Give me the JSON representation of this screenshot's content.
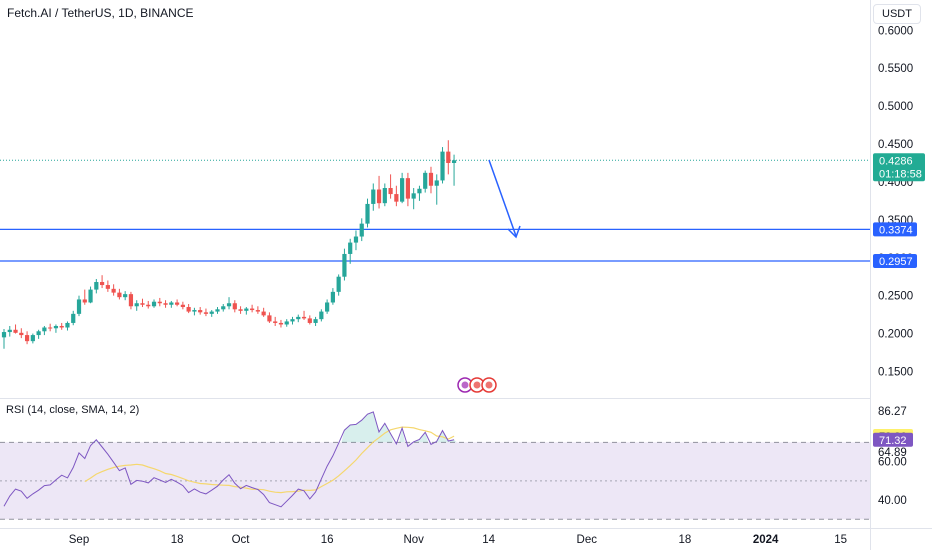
{
  "header": {
    "symbol_title": "Fetch.AI / TetherUS, 1D, BINANCE",
    "currency": "USDT"
  },
  "colors": {
    "up": "#26a69a",
    "down": "#ef5350",
    "level_line": "#2962ff",
    "rsi_line": "#7e57c2",
    "rsi_ma": "#f5d76e",
    "rsi_band": "#ede7f6",
    "arrow": "#2962ff",
    "price_tag_bg": "#22ab94",
    "level_tag_bg": "#2962ff",
    "ma_tag_bg": "#fdf06b",
    "rsi_tag_bg": "#7e57c2"
  },
  "chart_data": [
    {
      "type": "candlestick",
      "title": "Fetch.AI / TetherUS, 1D, BINANCE",
      "y_ticks": [
        "0.6000",
        "0.5500",
        "0.5000",
        "0.4500",
        "0.4000",
        "0.3500",
        "0.3000",
        "0.2500",
        "0.2000",
        "0.1500"
      ],
      "x_ticks": [
        "Sep",
        "18",
        "Oct",
        "16",
        "Nov",
        "14",
        "Dec",
        "18",
        "2024",
        "15"
      ],
      "ylim": [
        0.115,
        0.64
      ],
      "last_price": "0.4286",
      "countdown": "01:18:58",
      "horizontal_levels": [
        "0.3374",
        "0.2957"
      ],
      "annotations": [
        "blue arrow pointing down toward the 0.3374 level"
      ],
      "ohlc": [
        [
          0.195,
          0.206,
          0.18,
          0.202
        ],
        [
          0.202,
          0.21,
          0.196,
          0.205
        ],
        [
          0.205,
          0.212,
          0.2,
          0.201
        ],
        [
          0.201,
          0.207,
          0.194,
          0.198
        ],
        [
          0.198,
          0.203,
          0.186,
          0.19
        ],
        [
          0.19,
          0.2,
          0.187,
          0.198
        ],
        [
          0.198,
          0.205,
          0.193,
          0.203
        ],
        [
          0.203,
          0.21,
          0.198,
          0.208
        ],
        [
          0.208,
          0.213,
          0.203,
          0.207
        ],
        [
          0.207,
          0.212,
          0.201,
          0.21
        ],
        [
          0.21,
          0.214,
          0.205,
          0.208
        ],
        [
          0.208,
          0.216,
          0.204,
          0.214
        ],
        [
          0.214,
          0.23,
          0.211,
          0.226
        ],
        [
          0.226,
          0.25,
          0.223,
          0.245
        ],
        [
          0.245,
          0.258,
          0.238,
          0.241
        ],
        [
          0.241,
          0.262,
          0.24,
          0.258
        ],
        [
          0.258,
          0.272,
          0.253,
          0.268
        ],
        [
          0.268,
          0.277,
          0.26,
          0.264
        ],
        [
          0.264,
          0.27,
          0.255,
          0.259
        ],
        [
          0.259,
          0.265,
          0.25,
          0.254
        ],
        [
          0.254,
          0.259,
          0.245,
          0.248
        ],
        [
          0.248,
          0.256,
          0.244,
          0.252
        ],
        [
          0.252,
          0.255,
          0.232,
          0.236
        ],
        [
          0.236,
          0.244,
          0.23,
          0.24
        ],
        [
          0.24,
          0.246,
          0.235,
          0.238
        ],
        [
          0.238,
          0.243,
          0.233,
          0.236
        ],
        [
          0.236,
          0.245,
          0.234,
          0.242
        ],
        [
          0.242,
          0.247,
          0.236,
          0.24
        ],
        [
          0.24,
          0.244,
          0.234,
          0.238
        ],
        [
          0.238,
          0.243,
          0.234,
          0.241
        ],
        [
          0.241,
          0.245,
          0.236,
          0.238
        ],
        [
          0.238,
          0.242,
          0.232,
          0.235
        ],
        [
          0.235,
          0.239,
          0.227,
          0.229
        ],
        [
          0.229,
          0.234,
          0.224,
          0.231
        ],
        [
          0.231,
          0.235,
          0.225,
          0.228
        ],
        [
          0.228,
          0.233,
          0.223,
          0.226
        ],
        [
          0.226,
          0.231,
          0.222,
          0.229
        ],
        [
          0.229,
          0.235,
          0.226,
          0.232
        ],
        [
          0.232,
          0.239,
          0.229,
          0.236
        ],
        [
          0.236,
          0.248,
          0.232,
          0.24
        ],
        [
          0.24,
          0.244,
          0.228,
          0.232
        ],
        [
          0.232,
          0.236,
          0.226,
          0.23
        ],
        [
          0.23,
          0.235,
          0.225,
          0.233
        ],
        [
          0.233,
          0.238,
          0.228,
          0.231
        ],
        [
          0.231,
          0.236,
          0.226,
          0.229
        ],
        [
          0.229,
          0.234,
          0.222,
          0.224
        ],
        [
          0.224,
          0.228,
          0.214,
          0.216
        ],
        [
          0.216,
          0.222,
          0.21,
          0.214
        ],
        [
          0.214,
          0.218,
          0.208,
          0.212
        ],
        [
          0.212,
          0.219,
          0.209,
          0.216
        ],
        [
          0.216,
          0.222,
          0.212,
          0.219
        ],
        [
          0.219,
          0.225,
          0.215,
          0.222
        ],
        [
          0.222,
          0.23,
          0.218,
          0.22
        ],
        [
          0.22,
          0.224,
          0.212,
          0.214
        ],
        [
          0.214,
          0.222,
          0.21,
          0.219
        ],
        [
          0.219,
          0.232,
          0.216,
          0.229
        ],
        [
          0.229,
          0.245,
          0.226,
          0.241
        ],
        [
          0.241,
          0.26,
          0.238,
          0.255
        ],
        [
          0.255,
          0.278,
          0.25,
          0.275
        ],
        [
          0.275,
          0.312,
          0.27,
          0.305
        ],
        [
          0.305,
          0.325,
          0.292,
          0.32
        ],
        [
          0.32,
          0.336,
          0.31,
          0.328
        ],
        [
          0.328,
          0.352,
          0.322,
          0.345
        ],
        [
          0.345,
          0.378,
          0.34,
          0.371
        ],
        [
          0.371,
          0.398,
          0.362,
          0.39
        ],
        [
          0.39,
          0.408,
          0.365,
          0.372
        ],
        [
          0.372,
          0.398,
          0.368,
          0.392
        ],
        [
          0.392,
          0.41,
          0.378,
          0.384
        ],
        [
          0.384,
          0.395,
          0.368,
          0.374
        ],
        [
          0.374,
          0.412,
          0.372,
          0.405
        ],
        [
          0.405,
          0.412,
          0.368,
          0.378
        ],
        [
          0.378,
          0.392,
          0.364,
          0.385
        ],
        [
          0.385,
          0.395,
          0.375,
          0.391
        ],
        [
          0.391,
          0.415,
          0.386,
          0.412
        ],
        [
          0.412,
          0.42,
          0.385,
          0.395
        ],
        [
          0.395,
          0.41,
          0.37,
          0.402
        ],
        [
          0.402,
          0.446,
          0.398,
          0.44
        ],
        [
          0.44,
          0.455,
          0.41,
          0.425
        ],
        [
          0.425,
          0.436,
          0.395,
          0.4286
        ]
      ]
    },
    {
      "type": "line",
      "title": "RSI (14, close, SMA, 14, 2)",
      "y_ticks": [
        "86.27",
        "64.89",
        "60.00",
        "40.00"
      ],
      "ylim": [
        26,
        92
      ],
      "bands": [
        30,
        50,
        70
      ],
      "last_values": [
        "73.26",
        "71.32"
      ],
      "series": [
        {
          "values": [
            36.8,
            42.1,
            45.7,
            44.6,
            40.9,
            43.2,
            45.1,
            47.5,
            47.9,
            50.5,
            52.9,
            51.5,
            56.9,
            64.5,
            61.6,
            68.3,
            71.3,
            67.6,
            63.8,
            59.6,
            55.3,
            56.7,
            48.2,
            50.2,
            49.8,
            48.9,
            51.6,
            50.4,
            49.2,
            50.8,
            49.3,
            47.5,
            43.9,
            45.8,
            44.1,
            43.2,
            45.1,
            47.2,
            50.5,
            53.2,
            48.7,
            45.9,
            47.6,
            46.5,
            45.5,
            42.9,
            38.7,
            37.6,
            36.5,
            39.4,
            42.4,
            45.7,
            44.8,
            40.6,
            44.2,
            50.9,
            57.6,
            63.0,
            69.6,
            76.3,
            79.0,
            79.3,
            81.5,
            84.6,
            85.8,
            75.4,
            79.9,
            74.5,
            69.2,
            77.4,
            67.9,
            70.3,
            71.5,
            75.2,
            68.9,
            70.5,
            76.1,
            70.7,
            71.32
          ]
        },
        {
          "values": [
            null,
            null,
            null,
            null,
            null,
            null,
            null,
            null,
            null,
            null,
            null,
            null,
            null,
            null,
            49.6,
            51.4,
            53.5,
            54.8,
            56.0,
            56.9,
            57.6,
            58.0,
            58.2,
            58.6,
            58.2,
            57.2,
            56.3,
            55.2,
            53.8,
            53.3,
            52.3,
            51.2,
            50.0,
            49.3,
            48.6,
            48.4,
            48.1,
            47.9,
            47.7,
            47.6,
            47.0,
            46.7,
            46.2,
            45.6,
            45.6,
            45.4,
            44.6,
            44.1,
            43.9,
            44.3,
            44.4,
            44.6,
            45.1,
            45.0,
            45.3,
            47.0,
            48.6,
            50.3,
            52.6,
            55.2,
            57.9,
            60.8,
            64.2,
            67.2,
            70.2,
            72.4,
            74.8,
            76.5,
            77.3,
            77.9,
            77.8,
            77.5,
            76.6,
            76.0,
            75.2,
            73.3,
            72.9,
            71.7,
            73.26
          ]
        }
      ]
    }
  ],
  "time_axis": [
    "Sep",
    "18",
    "Oct",
    "16",
    "Nov",
    "14",
    "Dec",
    "18",
    "2024",
    "15"
  ]
}
